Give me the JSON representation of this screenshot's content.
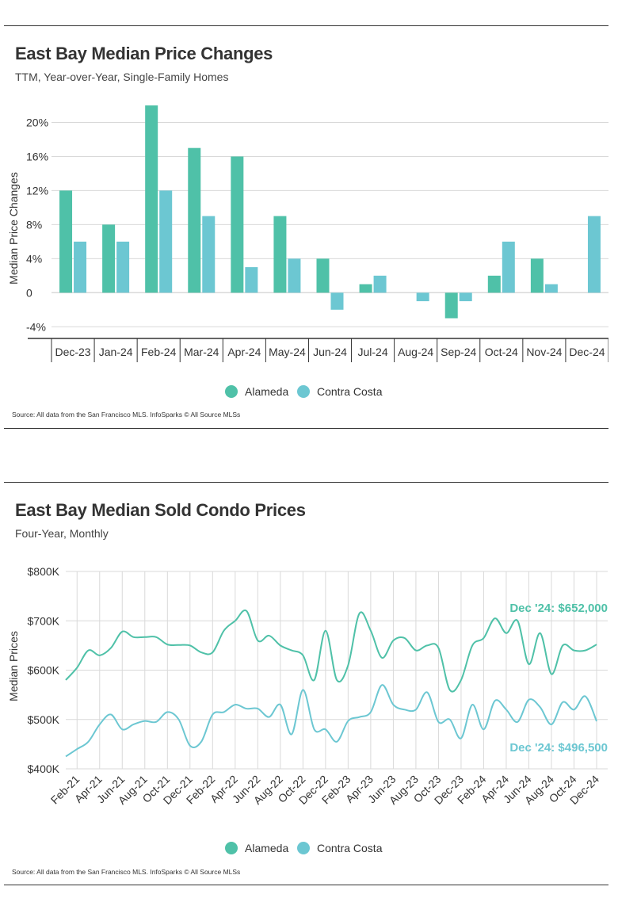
{
  "colors": {
    "alameda": "#4fc1a8",
    "contra_costa": "#6cc7d2",
    "grid": "#d9d9d9",
    "axis": "#333333"
  },
  "source_text": "Source:  All data from the San Francisco MLS. InfoSparks © All Source MLSs",
  "legend": {
    "alameda": "Alameda",
    "contra_costa": "Contra Costa"
  },
  "chart_data": [
    {
      "type": "bar",
      "title": "East Bay Median Price Changes",
      "subtitle": "TTM, Year-over-Year, Single-Family Homes",
      "ylabel": "Median Price Changes",
      "xlabel": "",
      "ylim": [
        -5,
        22
      ],
      "yticks": [
        20,
        16,
        12,
        8,
        4,
        0,
        -4
      ],
      "ytick_labels": [
        "20%",
        "16%",
        "12%",
        "8%",
        "4%",
        "0",
        "-4%"
      ],
      "categories": [
        "Dec-23",
        "Jan-24",
        "Feb-24",
        "Mar-24",
        "Apr-24",
        "May-24",
        "Jun-24",
        "Jul-24",
        "Aug-24",
        "Sep-24",
        "Oct-24",
        "Nov-24",
        "Dec-24"
      ],
      "series": [
        {
          "name": "Alameda",
          "values": [
            12,
            8,
            22,
            17,
            16,
            9,
            4,
            1,
            0,
            -3,
            2,
            4,
            0
          ]
        },
        {
          "name": "Contra Costa",
          "values": [
            6,
            6,
            12,
            9,
            3,
            4,
            -2,
            2,
            -1,
            -1,
            6,
            1,
            9
          ]
        }
      ],
      "grid": true,
      "legend": "bottom"
    },
    {
      "type": "line",
      "title": "East Bay Median Sold Condo Prices",
      "subtitle": "Four-Year, Monthly",
      "ylabel": "Median Prices",
      "xlabel": "",
      "ylim": [
        400000,
        800000
      ],
      "yticks": [
        800000,
        700000,
        600000,
        500000,
        400000
      ],
      "ytick_labels": [
        "$800K",
        "$700K",
        "$600K",
        "$500K",
        "$400K"
      ],
      "x": [
        "Jan-21",
        "Feb-21",
        "Mar-21",
        "Apr-21",
        "May-21",
        "Jun-21",
        "Jul-21",
        "Aug-21",
        "Sep-21",
        "Oct-21",
        "Nov-21",
        "Dec-21",
        "Jan-22",
        "Feb-22",
        "Mar-22",
        "Apr-22",
        "May-22",
        "Jun-22",
        "Jul-22",
        "Aug-22",
        "Sep-22",
        "Oct-22",
        "Nov-22",
        "Dec-22",
        "Jan-23",
        "Feb-23",
        "Mar-23",
        "Apr-23",
        "May-23",
        "Jun-23",
        "Jul-23",
        "Aug-23",
        "Sep-23",
        "Oct-23",
        "Nov-23",
        "Dec-23",
        "Jan-24",
        "Feb-24",
        "Mar-24",
        "Apr-24",
        "May-24",
        "Jun-24",
        "Jul-24",
        "Aug-24",
        "Sep-24",
        "Oct-24",
        "Nov-24",
        "Dec-24"
      ],
      "x_tick_labels": [
        "Feb-21",
        "Apr-21",
        "Jun-21",
        "Aug-21",
        "Oct-21",
        "Dec-21",
        "Feb-22",
        "Apr-22",
        "Jun-22",
        "Aug-22",
        "Oct-22",
        "Dec-22",
        "Feb-23",
        "Apr-23",
        "Jun-23",
        "Aug-23",
        "Oct-23",
        "Dec-23",
        "Feb-24",
        "Apr-24",
        "Jun-24",
        "Aug-24",
        "Oct-24",
        "Dec-24"
      ],
      "series": [
        {
          "name": "Alameda",
          "values": [
            580000,
            605000,
            640000,
            630000,
            645000,
            678000,
            667000,
            667000,
            667000,
            652000,
            651000,
            650000,
            636000,
            636000,
            680000,
            700000,
            720000,
            660000,
            670000,
            650000,
            640000,
            630000,
            580000,
            680000,
            580000,
            610000,
            715000,
            680000,
            625000,
            660000,
            665000,
            640000,
            650000,
            645000,
            560000,
            580000,
            650000,
            665000,
            705000,
            675000,
            700000,
            612000,
            675000,
            592000,
            650000,
            640000,
            640000,
            652000
          ]
        },
        {
          "name": "Contra Costa",
          "values": [
            425000,
            440000,
            455000,
            490000,
            510000,
            480000,
            490000,
            497000,
            495000,
            515000,
            500000,
            447000,
            455000,
            510000,
            515000,
            530000,
            522000,
            522000,
            505000,
            530000,
            470000,
            560000,
            480000,
            480000,
            455000,
            497000,
            505000,
            515000,
            570000,
            530000,
            520000,
            520000,
            555000,
            495000,
            500000,
            462000,
            530000,
            480000,
            538000,
            520000,
            495000,
            540000,
            525000,
            490000,
            535000,
            520000,
            547000,
            496500
          ]
        }
      ],
      "annotations": [
        {
          "series": "Alameda",
          "text": "Dec '24: $652,000"
        },
        {
          "series": "Contra Costa",
          "text": "Dec '24: $496,500"
        }
      ],
      "grid": true,
      "legend": "bottom"
    }
  ]
}
